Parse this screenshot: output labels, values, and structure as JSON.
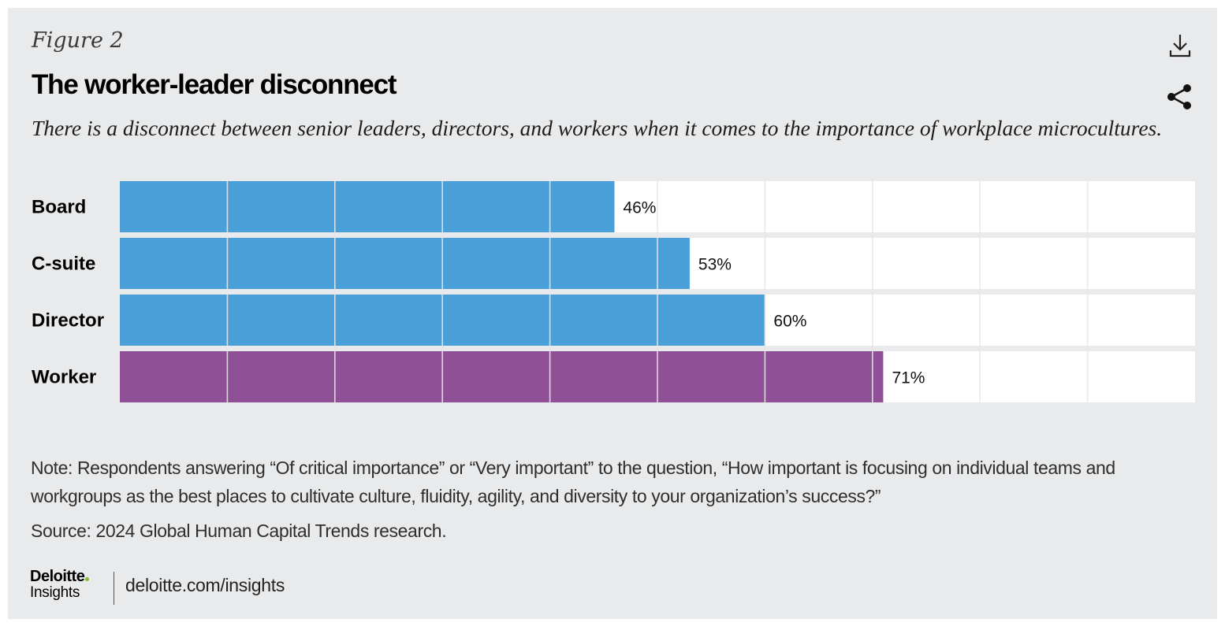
{
  "figure_label": "Figure 2",
  "title": "The worker-leader disconnect",
  "subtitle": "There is a disconnect between senior leaders, directors, and workers when it comes to the importance of workplace microcultures.",
  "icons": {
    "download": "download-icon",
    "share": "share-icon"
  },
  "colors": {
    "leader_bar": "#4b9fd8",
    "worker_bar": "#8f5097",
    "track": "#ffffff",
    "background": "#e9eaeb",
    "logo_dot": "#86bc25"
  },
  "chart_data": {
    "type": "bar",
    "orientation": "horizontal",
    "categories": [
      "Board",
      "C-suite",
      "Director",
      "Worker"
    ],
    "values": [
      46,
      53,
      60,
      71
    ],
    "value_labels": [
      "46%",
      "53%",
      "60%",
      "71%"
    ],
    "unit": "%",
    "xlim": [
      0,
      100
    ],
    "gridline_step": 10,
    "title": "The worker-leader disconnect",
    "xlabel": "",
    "ylabel": ""
  },
  "note": "Note: Respondents answering “Of critical importance” or “Very important” to the question, “How important is focusing on individual teams and workgroups as the best places to cultivate culture, fluidity, agility, and diversity to your organization’s success?”",
  "source": "Source: 2024 Global Human Capital Trends research.",
  "logo": {
    "brand": "Deloitte",
    "sub": "Insights"
  },
  "site_link": "deloitte.com/insights"
}
